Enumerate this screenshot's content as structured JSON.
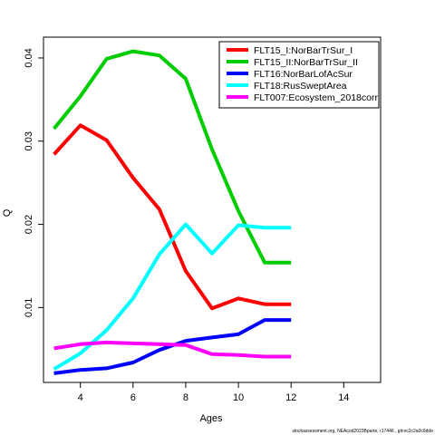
{
  "chart_data": {
    "type": "line",
    "xlabel": "Ages",
    "ylabel": "Q",
    "xlim": [
      2.6,
      15.4
    ],
    "ylim": [
      0.001,
      0.0425
    ],
    "xticks": [
      4,
      6,
      8,
      10,
      12,
      14
    ],
    "yticks": [
      0.01,
      0.02,
      0.03,
      0.04
    ],
    "ytick_labels": [
      "0.01",
      "0.02",
      "0.03",
      "0.04"
    ],
    "grid": false,
    "legend_position": "top-right",
    "series": [
      {
        "name": "FLT15_I:NorBarTrSur_I",
        "color": "#ff0000",
        "x": [
          3,
          4,
          5,
          6,
          7,
          8,
          9,
          10,
          11,
          12
        ],
        "y": [
          0.0284,
          0.0319,
          0.0301,
          0.0256,
          0.0218,
          0.0144,
          0.0099,
          0.0111,
          0.0104,
          0.0104
        ]
      },
      {
        "name": "FLT15_II:NorBarTrSur_II",
        "color": "#00cd00",
        "x": [
          3,
          4,
          5,
          6,
          7,
          8,
          9,
          10,
          11,
          12
        ],
        "y": [
          0.0315,
          0.0354,
          0.0399,
          0.0408,
          0.0403,
          0.0375,
          0.029,
          0.0216,
          0.0154,
          0.0154
        ]
      },
      {
        "name": "FLT16:NorBarLofAcSur",
        "color": "#0000ff",
        "x": [
          3,
          4,
          5,
          6,
          7,
          8,
          9,
          10,
          11,
          12
        ],
        "y": [
          0.0021,
          0.0025,
          0.0027,
          0.0034,
          0.0049,
          0.006,
          0.0064,
          0.0068,
          0.0085,
          0.0085
        ]
      },
      {
        "name": "FLT18:RusSweptArea",
        "color": "#00ffff",
        "x": [
          3,
          4,
          5,
          6,
          7,
          8,
          9,
          10,
          11,
          12
        ],
        "y": [
          0.0026,
          0.0045,
          0.0073,
          0.0111,
          0.0164,
          0.02,
          0.0165,
          0.0199,
          0.0196,
          0.0196
        ]
      },
      {
        "name": "FLT007:Ecosystem_2018corr",
        "color": "#ff00ff",
        "x": [
          3,
          4,
          5,
          6,
          7,
          8,
          9,
          10,
          11,
          12
        ],
        "y": [
          0.0051,
          0.0056,
          0.0058,
          0.0057,
          0.0056,
          0.0055,
          0.0044,
          0.0043,
          0.0041,
          0.0041
        ]
      }
    ]
  },
  "footer": {
    "note": "stockassessment.org, NEAcod2023Bparte, r17446 , git:ec2c2a0c6dde"
  }
}
